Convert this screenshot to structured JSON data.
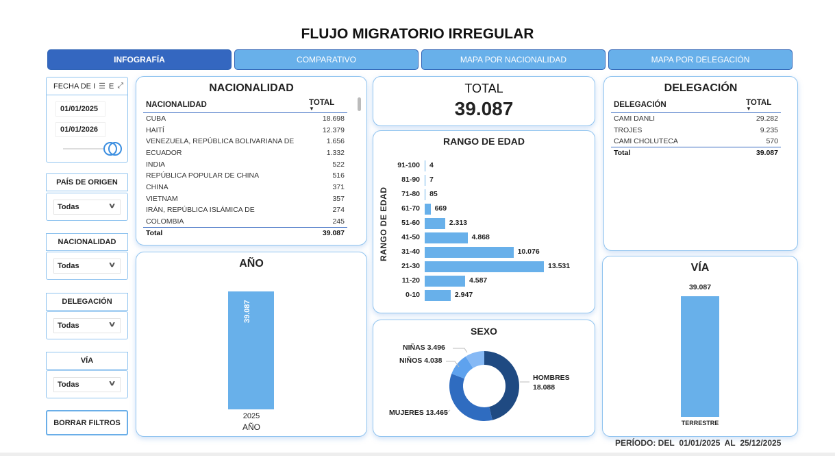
{
  "title": "FLUJO MIGRATORIO IRREGULAR",
  "tabs": [
    "INFOGRAFÍA",
    "COMPARATIVO",
    "MAPA POR NACIONALIDAD",
    "MAPA POR DELEGACIÓN"
  ],
  "slicers": {
    "fecha": {
      "label": "FECHA DE I",
      "extra": "E",
      "start": "01/01/2025",
      "end": "01/01/2026"
    },
    "pais": {
      "label": "PAÍS DE ORIGEN",
      "value": "Todas"
    },
    "nacionalidad": {
      "label": "NACIONALIDAD",
      "value": "Todas"
    },
    "delegacion": {
      "label": "DELEGACIÓN",
      "value": "Todas"
    },
    "via": {
      "label": "VÍA",
      "value": "Todas"
    },
    "clear": "BORRAR FILTROS"
  },
  "nacionalidad": {
    "title": "NACIONALIDAD",
    "col1": "NACIONALIDAD",
    "col2": "TOTAL",
    "rows": [
      [
        "CUBA",
        "18.698"
      ],
      [
        "HAITÍ",
        "12.379"
      ],
      [
        "VENEZUELA, REPÚBLICA BOLIVARIANA DE",
        "1.656"
      ],
      [
        "ECUADOR",
        "1.332"
      ],
      [
        "INDIA",
        "522"
      ],
      [
        "REPÚBLICA POPULAR DE CHINA",
        "516"
      ],
      [
        "CHINA",
        "371"
      ],
      [
        "VIETNAM",
        "357"
      ],
      [
        "IRÁN, REPÚBLICA ISLÁMICA DE",
        "274"
      ],
      [
        "COLOMBIA",
        "245"
      ]
    ],
    "total_label": "Total",
    "total": "39.087"
  },
  "total": {
    "title": "TOTAL",
    "value": "39.087"
  },
  "delegacion": {
    "title": "DELEGACIÓN",
    "col1": "DELEGACIÓN",
    "col2": "TOTAL",
    "rows": [
      [
        "CAMI DANLI",
        "29.282"
      ],
      [
        "TROJES",
        "9.235"
      ],
      [
        "CAMI CHOLUTECA",
        "570"
      ]
    ],
    "total_label": "Total",
    "total": "39.087"
  },
  "chart_data": [
    {
      "type": "bar",
      "title": "AÑO",
      "categories": [
        "2025"
      ],
      "values": [
        39087
      ],
      "value_labels": [
        "39.087"
      ],
      "xlabel": "AÑO"
    },
    {
      "type": "bar",
      "orientation": "horizontal",
      "title": "RANGO DE EDAD",
      "ylabel": "RANGO DE EDAD",
      "categories": [
        "91-100",
        "81-90",
        "71-80",
        "61-70",
        "51-60",
        "41-50",
        "31-40",
        "21-30",
        "11-20",
        "0-10"
      ],
      "values": [
        4,
        7,
        85,
        669,
        2313,
        4868,
        10076,
        13531,
        4587,
        2947
      ],
      "value_labels": [
        "4",
        "7",
        "85",
        "669",
        "2.313",
        "4.868",
        "10.076",
        "13.531",
        "4.587",
        "2.947"
      ]
    },
    {
      "type": "pie",
      "title": "SEXO",
      "donut": true,
      "categories": [
        "HOMBRES",
        "MUJERES",
        "NIÑOS",
        "NIÑAS"
      ],
      "values": [
        18088,
        13465,
        4038,
        3496
      ],
      "value_labels": [
        "18.088",
        "13.465",
        "4.038",
        "3.496"
      ],
      "colors": [
        "#1f4a82",
        "#2f6cc0",
        "#5ea2ee",
        "#86b9f5"
      ]
    },
    {
      "type": "bar",
      "title": "VÍA",
      "categories": [
        "TERRESTRE"
      ],
      "values": [
        39087
      ],
      "value_labels": [
        "39.087"
      ]
    }
  ],
  "periodo": {
    "label": "PERÍODO: DEL",
    "start": "01/01/2025",
    "al": "AL",
    "end": "25/12/2025"
  }
}
